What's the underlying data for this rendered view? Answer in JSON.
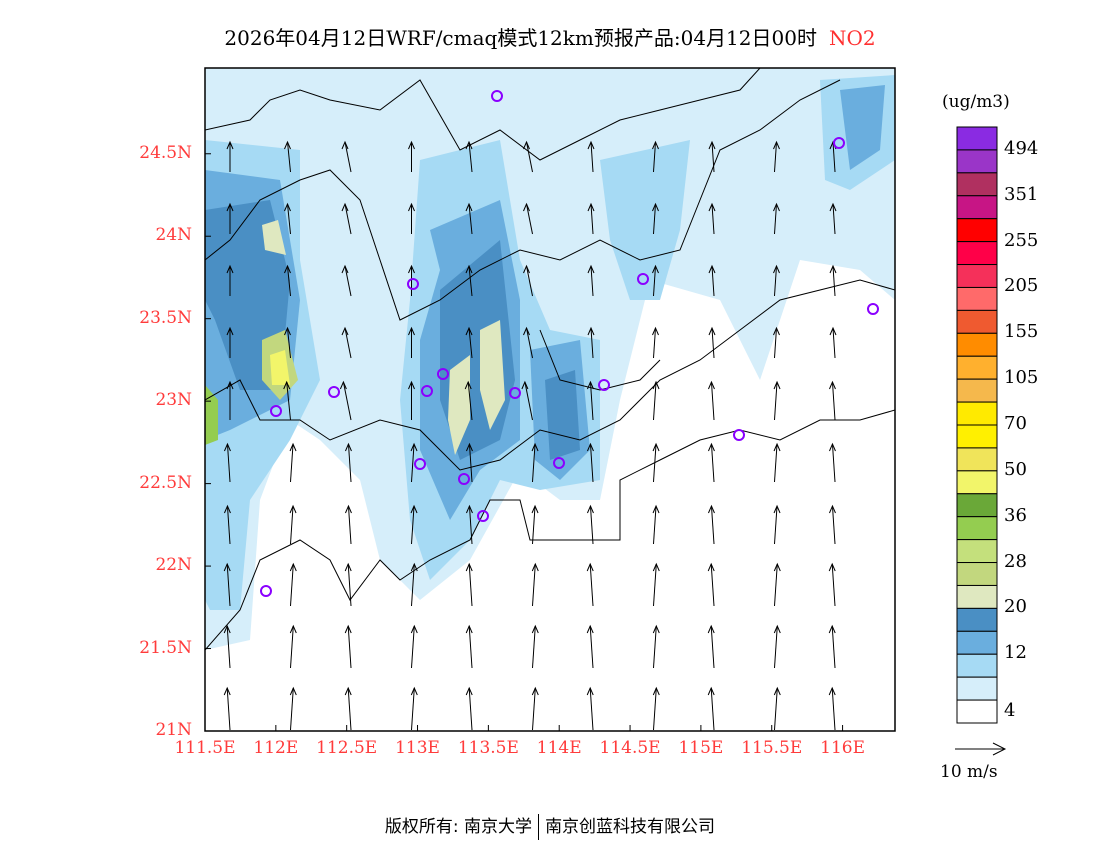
{
  "title": {
    "text": "2026年04月12日WRF/cmaq模式12km预报产品:04月12日00时",
    "species": "NO2"
  },
  "map": {
    "lat_labels": [
      "24.5N",
      "24N",
      "23.5N",
      "23N",
      "22.5N",
      "22N",
      "21.5N",
      "21N"
    ],
    "lat_values": [
      24.5,
      24,
      23.5,
      23,
      22.5,
      22,
      21.5,
      21
    ],
    "lon_labels": [
      "111.5E",
      "112E",
      "112.5E",
      "113E",
      "113.5E",
      "114E",
      "114.5E",
      "115E",
      "115.5E",
      "116E"
    ],
    "lon_values": [
      111.5,
      112,
      112.5,
      113,
      113.5,
      114,
      114.5,
      115,
      115.5,
      116
    ],
    "extent": {
      "lon": [
        111.5,
        116.37
      ],
      "lat": [
        21,
        25.02
      ]
    }
  },
  "colorbar": {
    "unit": "(ug/m3)",
    "colors": [
      "#8a2be2",
      "#9a35c8",
      "#b03060",
      "#c71585",
      "#ff0000",
      "#ff0048",
      "#f5305a",
      "#ff6a6a",
      "#ef5a30",
      "#ff8c00",
      "#ffb02e",
      "#f5b84c",
      "#ffea00",
      "#fff000",
      "#f0e45a",
      "#f2f56a",
      "#6aa838",
      "#94cd50",
      "#c4e07c",
      "#c2d77e",
      "#dfe8c0",
      "#4a8fc4",
      "#6aaede",
      "#a6daf4",
      "#d6eefa",
      "#ffffff"
    ],
    "labels": [
      "494",
      "351",
      "255",
      "205",
      "155",
      "105",
      "70",
      "50",
      "36",
      "28",
      "20",
      "12",
      "4"
    ]
  },
  "wind_reference": "10 m/s",
  "footer": {
    "left": "版权所有: 南京大学",
    "right": "南京创蓝科技有限公司"
  }
}
